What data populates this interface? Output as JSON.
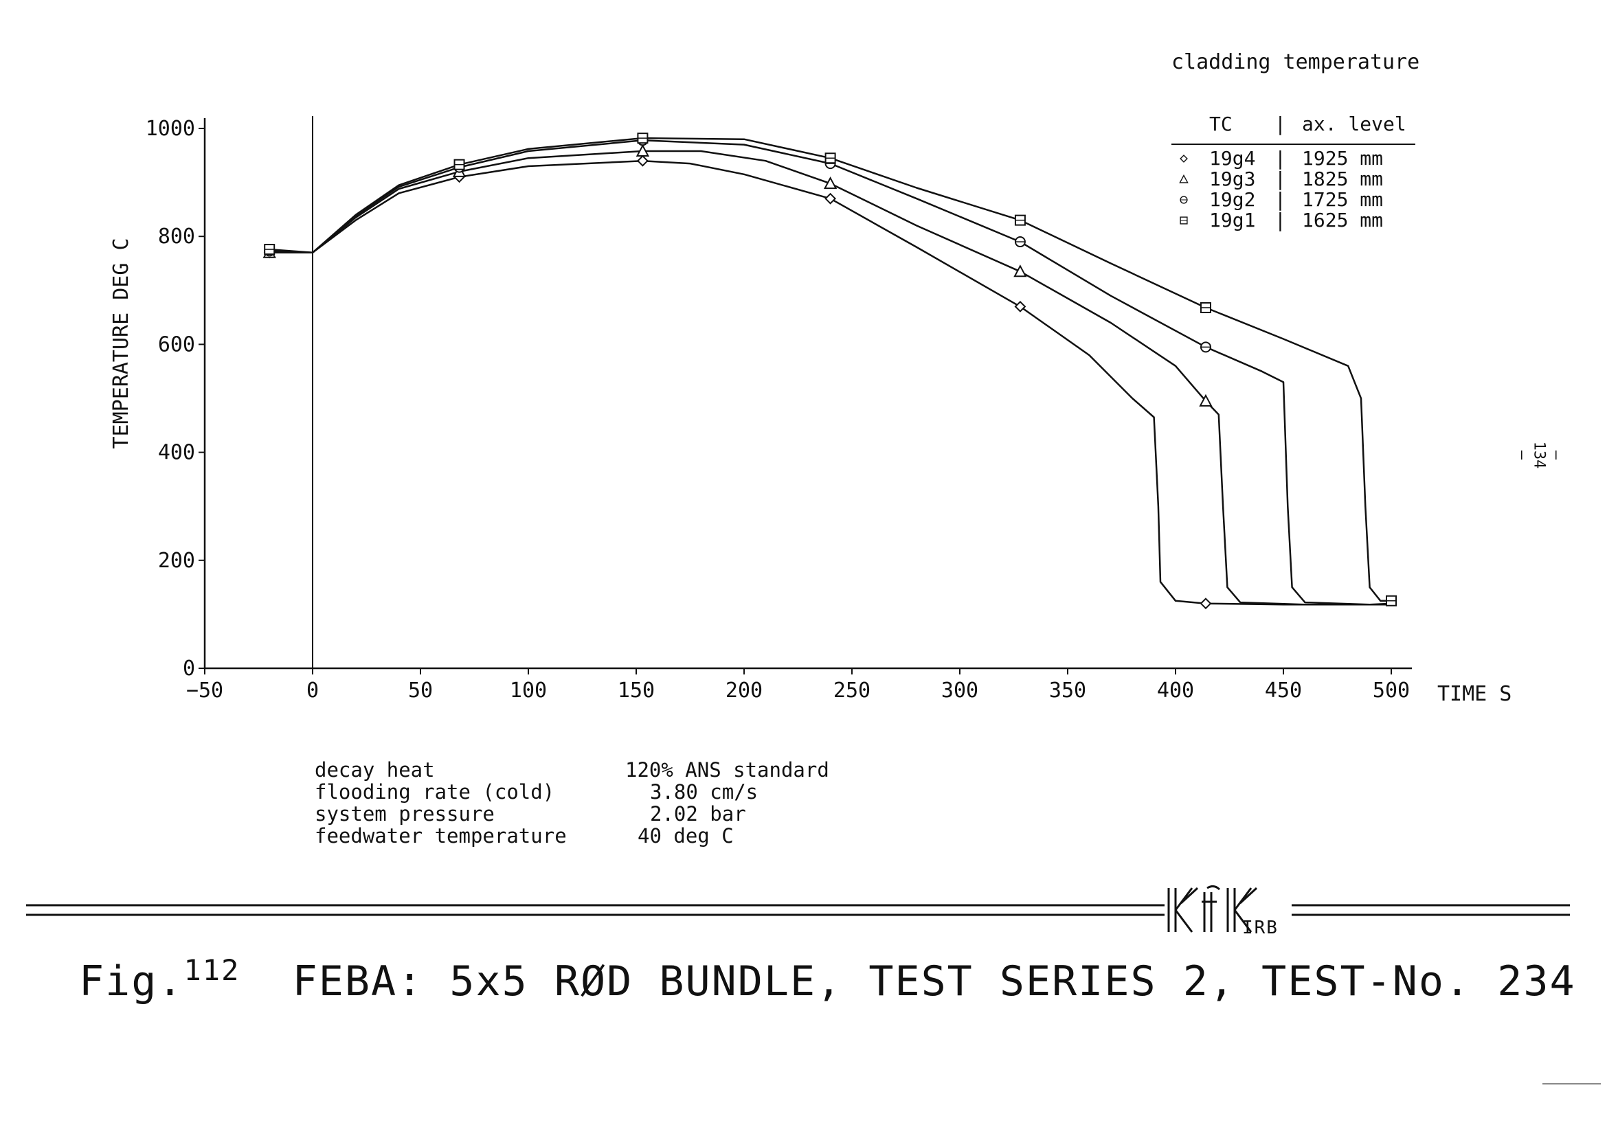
{
  "chart_data": {
    "type": "line",
    "title": "cladding temperature",
    "xlabel": "TIME S",
    "ylabel": "TEMPERATURE DEG C",
    "xlim": [
      -50,
      500
    ],
    "ylim": [
      0,
      1000
    ],
    "xticks": [
      -50,
      0,
      50,
      100,
      150,
      200,
      250,
      300,
      350,
      400,
      450,
      500
    ],
    "yticks": [
      0,
      200,
      400,
      600,
      800,
      1000
    ],
    "legend_header": {
      "tc": "TC",
      "sep": "|",
      "level": "ax. level"
    },
    "legend_position": "top-right",
    "series": [
      {
        "name": "19g4",
        "level": "1925 mm",
        "marker": "diamond",
        "points": [
          [
            -20,
            770
          ],
          [
            0,
            770
          ],
          [
            20,
            830
          ],
          [
            40,
            880
          ],
          [
            68,
            910
          ],
          [
            100,
            930
          ],
          [
            153,
            940
          ],
          [
            175,
            935
          ],
          [
            200,
            915
          ],
          [
            240,
            870
          ],
          [
            280,
            780
          ],
          [
            328,
            670
          ],
          [
            360,
            580
          ],
          [
            380,
            500
          ],
          [
            390,
            465
          ],
          [
            392,
            300
          ],
          [
            393,
            160
          ],
          [
            400,
            125
          ],
          [
            414,
            120
          ],
          [
            450,
            118
          ],
          [
            500,
            118
          ]
        ]
      },
      {
        "name": "19g3",
        "level": "1825 mm",
        "marker": "triangle",
        "points": [
          [
            -20,
            770
          ],
          [
            0,
            770
          ],
          [
            20,
            835
          ],
          [
            40,
            888
          ],
          [
            68,
            920
          ],
          [
            100,
            945
          ],
          [
            153,
            958
          ],
          [
            180,
            958
          ],
          [
            210,
            940
          ],
          [
            240,
            898
          ],
          [
            280,
            820
          ],
          [
            328,
            735
          ],
          [
            370,
            640
          ],
          [
            400,
            560
          ],
          [
            414,
            495
          ],
          [
            420,
            470
          ],
          [
            422,
            300
          ],
          [
            424,
            150
          ],
          [
            430,
            122
          ],
          [
            460,
            118
          ],
          [
            500,
            118
          ]
        ]
      },
      {
        "name": "19g2",
        "level": "1725 mm",
        "marker": "circle",
        "points": [
          [
            -20,
            773
          ],
          [
            0,
            770
          ],
          [
            20,
            838
          ],
          [
            40,
            892
          ],
          [
            68,
            928
          ],
          [
            100,
            958
          ],
          [
            153,
            978
          ],
          [
            200,
            970
          ],
          [
            240,
            935
          ],
          [
            280,
            870
          ],
          [
            328,
            790
          ],
          [
            370,
            690
          ],
          [
            414,
            595
          ],
          [
            440,
            550
          ],
          [
            450,
            530
          ],
          [
            452,
            300
          ],
          [
            454,
            150
          ],
          [
            460,
            122
          ],
          [
            490,
            118
          ],
          [
            500,
            120
          ]
        ]
      },
      {
        "name": "19g1",
        "level": "1625 mm",
        "marker": "square",
        "points": [
          [
            -20,
            776
          ],
          [
            0,
            770
          ],
          [
            20,
            840
          ],
          [
            40,
            895
          ],
          [
            68,
            933
          ],
          [
            100,
            962
          ],
          [
            153,
            982
          ],
          [
            200,
            980
          ],
          [
            240,
            945
          ],
          [
            280,
            890
          ],
          [
            328,
            830
          ],
          [
            370,
            750
          ],
          [
            414,
            668
          ],
          [
            450,
            610
          ],
          [
            480,
            560
          ],
          [
            486,
            500
          ],
          [
            488,
            300
          ],
          [
            490,
            150
          ],
          [
            495,
            125
          ],
          [
            500,
            125
          ]
        ]
      }
    ],
    "marker_x": {
      "19g4": [
        -20,
        68,
        153,
        240,
        328,
        414
      ],
      "19g3": [
        -20,
        68,
        153,
        240,
        328,
        414
      ],
      "19g2": [
        -20,
        68,
        153,
        240,
        328,
        414
      ],
      "19g1": [
        -20,
        68,
        153,
        240,
        328,
        414,
        500
      ]
    }
  },
  "params": [
    {
      "name": "decay heat",
      "value": "120% ANS standard"
    },
    {
      "name": "flooding rate (cold)",
      "value": "3.80 cm/s"
    },
    {
      "name": "system pressure",
      "value": "2.02 bar"
    },
    {
      "name": "feedwater temperature",
      "value": "40 deg C"
    }
  ],
  "caption": {
    "fig_label": "Fig.",
    "fig_number": "112",
    "text": "FEBA: 5x5 RØD BUNDLE, TEST SERIES 2, TEST-No. 234"
  },
  "page_number": "— 134 —",
  "logo": {
    "name": "KfK",
    "suffix": "IRB"
  }
}
